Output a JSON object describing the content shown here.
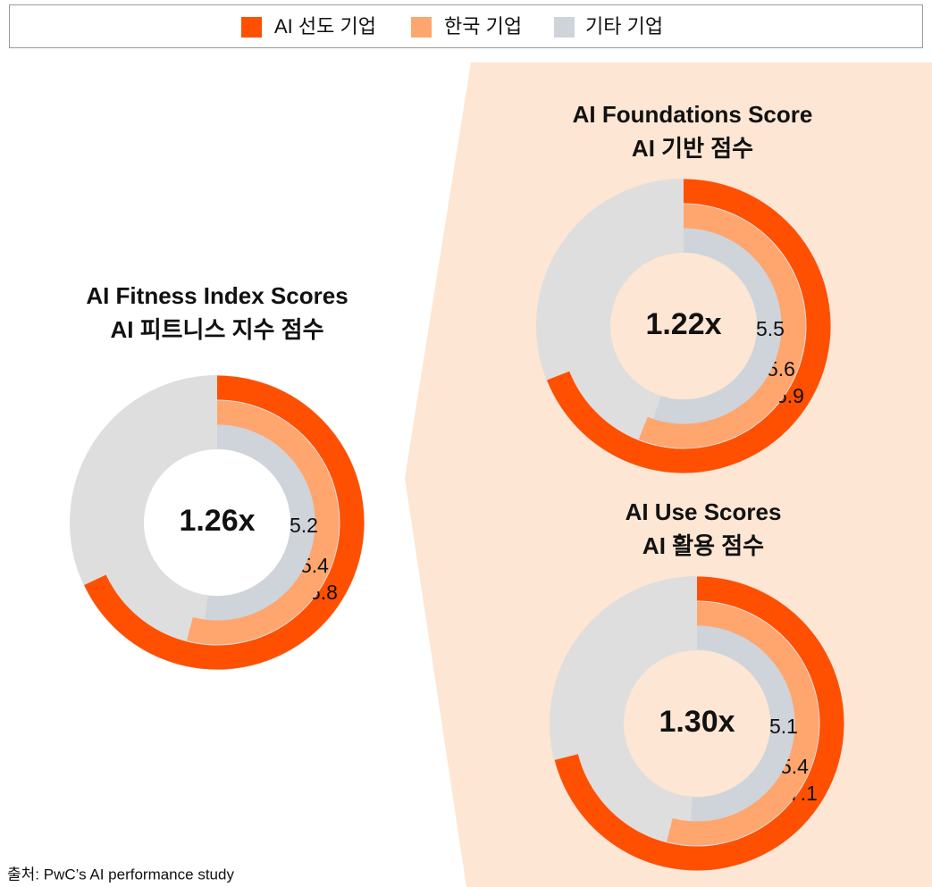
{
  "legend": [
    {
      "name": "AI 선도 기업",
      "color": "#fe5000"
    },
    {
      "name": "한국 기업",
      "color": "#ffa56e"
    },
    {
      "name": "기타 기업",
      "color": "#cfd3da"
    }
  ],
  "chart_data": [
    {
      "type": "radialbar",
      "title": "AI Fitness Index Scores",
      "subtitle": "AI 피트니스 지수 점수",
      "annotation": "1.26x",
      "values": [
        6.8,
        5.4,
        5.2
      ],
      "vlim": [
        0,
        10
      ],
      "track_color": "#dedede"
    },
    {
      "type": "radialbar",
      "title": "AI Foundations Score",
      "subtitle": "AI 기반 점수",
      "annotation": "1.22x",
      "values": [
        6.9,
        5.6,
        5.5
      ],
      "vlim": [
        0,
        10
      ],
      "track_color": "#dedede"
    },
    {
      "type": "radialbar",
      "title": "AI Use Scores",
      "subtitle": "AI 활용 점수",
      "annotation": "1.30x",
      "values": [
        7.1,
        5.4,
        5.1
      ],
      "vlim": [
        0,
        10
      ],
      "track_color": "#dedede"
    }
  ],
  "source": "출처: PwC’s AI performance study"
}
